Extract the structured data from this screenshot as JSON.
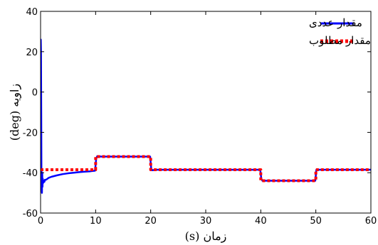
{
  "chart_data": {
    "type": "line",
    "title": "",
    "xlabel": "زمان (s)",
    "ylabel": "زاویه (deg)",
    "xlim": [
      0,
      60
    ],
    "ylim": [
      -60,
      40
    ],
    "xticks": [
      0,
      10,
      20,
      30,
      40,
      50,
      60
    ],
    "yticks": [
      -60,
      -40,
      -20,
      0,
      20,
      40
    ],
    "grid": false,
    "legend": "top-right",
    "series": [
      {
        "name": "مقدار عددی",
        "color": "#0000ff",
        "style": "solid",
        "x": [
          0,
          0.04,
          0.08,
          0.12,
          0.16,
          0.2,
          0.25,
          0.3,
          0.35,
          0.4,
          0.5,
          0.6,
          0.7,
          0.8,
          1,
          1.5,
          2,
          3,
          4,
          5,
          6,
          7,
          8,
          9,
          9.9,
          10.1,
          10.3,
          11,
          12,
          19.9,
          20.1,
          20.3,
          21,
          22,
          39.9,
          40.1,
          40.3,
          41,
          42,
          49.9,
          50.1,
          50.3,
          51,
          52,
          60
        ],
        "y": [
          -38,
          26,
          20,
          -10,
          -42,
          -48,
          -50,
          -40,
          -47,
          -43,
          -45,
          -44,
          -44.5,
          -43.5,
          -43.5,
          -42.5,
          -42,
          -41.3,
          -40.7,
          -40.3,
          -40,
          -39.7,
          -39.5,
          -39.3,
          -39,
          -33,
          -31.8,
          -32,
          -32,
          -32,
          -38,
          -38.8,
          -38.5,
          -38.5,
          -38.5,
          -43,
          -44,
          -44,
          -44,
          -44,
          -38.5,
          -38.5,
          -38.5,
          -38.5,
          -38.5
        ]
      },
      {
        "name": "مقدار مطلوب",
        "color": "#ff0000",
        "style": "dotted",
        "x": [
          0,
          10,
          10,
          20,
          20,
          40,
          40,
          50,
          50,
          60
        ],
        "y": [
          -38.5,
          -38.5,
          -32,
          -32,
          -38.5,
          -38.5,
          -44,
          -44,
          -38.5,
          -38.5
        ]
      }
    ]
  }
}
